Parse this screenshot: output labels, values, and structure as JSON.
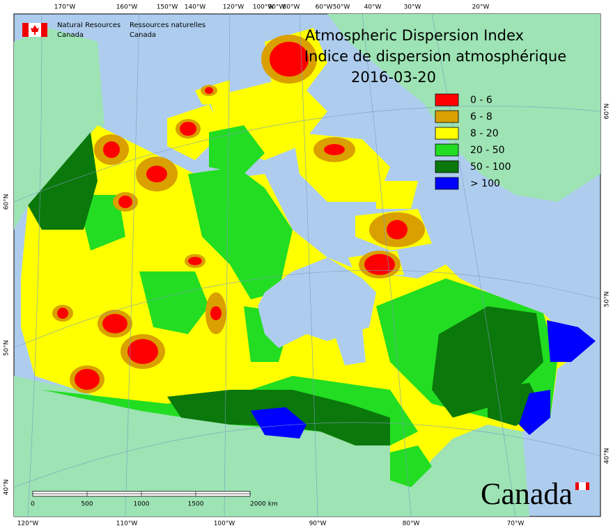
{
  "header": {
    "agency_en": [
      "Natural Resources",
      "Canada"
    ],
    "agency_fr": [
      "Ressources naturelles",
      "Canada"
    ]
  },
  "title": [
    "Atmospheric Dispersion Index",
    "Indice de dispersion atmosphérique"
  ],
  "date": "2016-03-20",
  "legend": [
    {
      "label": "0 - 6",
      "color": "#ff0000"
    },
    {
      "label": "6 - 8",
      "color": "#d9a000"
    },
    {
      "label": "8 - 20",
      "color": "#ffff00"
    },
    {
      "label": "20 - 50",
      "color": "#22dd22"
    },
    {
      "label": "50 - 100",
      "color": "#0a780a"
    },
    {
      "label": "> 100",
      "color": "#0000ff"
    }
  ],
  "graticule": {
    "top": [
      "170°W",
      "160°W",
      "150°W",
      "140°W",
      "120°W",
      "100°W",
      "90°W",
      "80°W",
      "60°W",
      "50°W",
      "40°W",
      "30°W",
      "20°W"
    ],
    "bottom": [
      "120°W",
      "110°W",
      "100°W",
      "90°W",
      "80°W",
      "70°W"
    ],
    "left": [
      "60°N",
      "50°N",
      "40°N"
    ],
    "right": [
      "60°N",
      "50°N",
      "40°N"
    ]
  },
  "scale_bar": {
    "labels": [
      "0",
      "500",
      "1000",
      "1500",
      "2000 km"
    ]
  },
  "wordmark": "Canada"
}
